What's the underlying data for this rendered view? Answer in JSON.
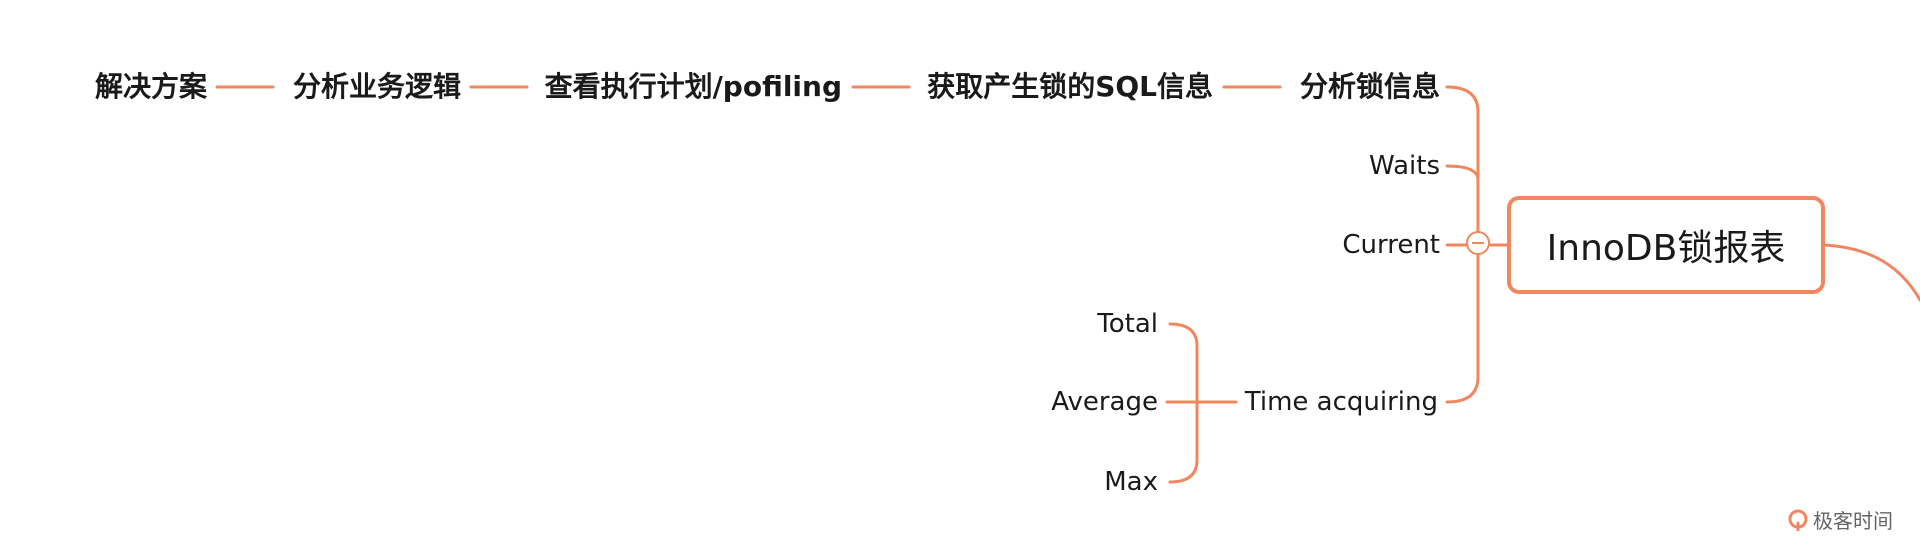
{
  "colors": {
    "edge": "#f0875f",
    "text": "#1a1a1a",
    "watermark": "#666666"
  },
  "root": {
    "label": "InnoDB锁报表"
  },
  "chain": [
    "分析锁信息",
    "获取产生锁的SQL信息",
    "查看执行计划/pofiling",
    "分析业务逻辑",
    "解决方案"
  ],
  "branches": {
    "waits": "Waits",
    "current": "Current",
    "time_acquiring": "Time acquiring"
  },
  "time_children": [
    "Total",
    "Average",
    "Max"
  ],
  "watermark": {
    "text": "极客时间",
    "icon": "geektime-logo-icon"
  }
}
